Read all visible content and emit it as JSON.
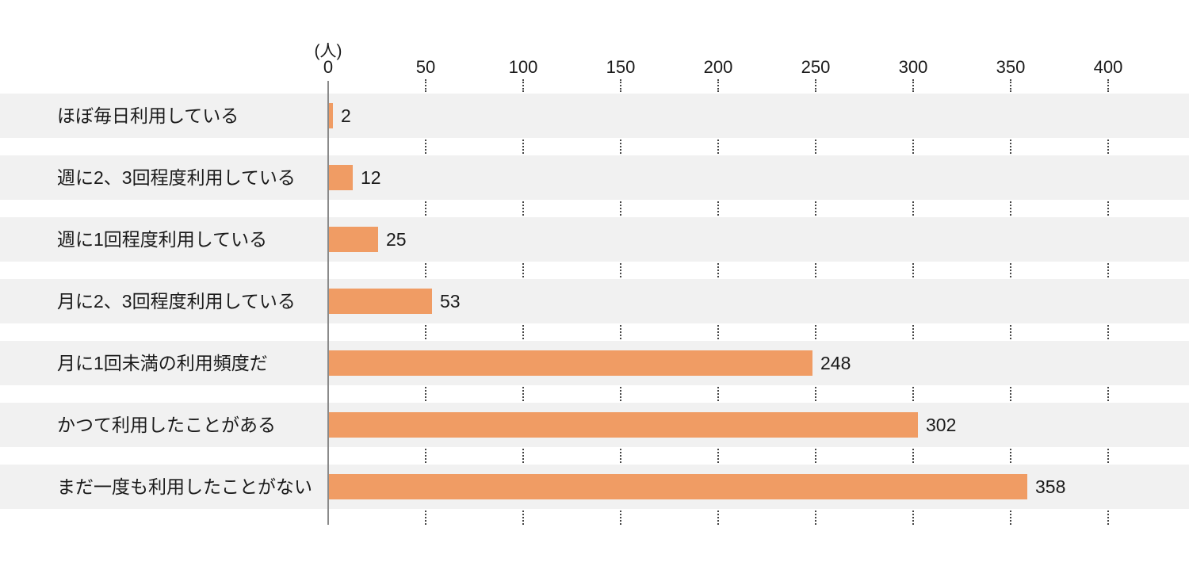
{
  "chart_data": {
    "type": "bar",
    "orientation": "horizontal",
    "title": "",
    "unit_label": "(人)",
    "categories": [
      "ほぼ毎日利用している",
      "週に2、3回程度利用している",
      "週に1回程度利用している",
      "月に2、3回程度利用している",
      "月に1回未満の利用頻度だ",
      "かつて利用したことがある",
      "まだ一度も利用したことがない"
    ],
    "values": [
      2,
      12,
      25,
      53,
      248,
      302,
      358
    ],
    "x_ticks": [
      0,
      50,
      100,
      150,
      200,
      250,
      300,
      350,
      400
    ],
    "xlim": [
      0,
      440
    ],
    "xlabel": "",
    "ylabel": "",
    "legend_position": "none",
    "grid": "dotted vertical tick segments between row bands",
    "colors": {
      "bar": "#f09c64",
      "row_band": "#f1f1f1",
      "axis_line": "#8a8a8a",
      "tick_dots": "#444444",
      "text": "#1a1a1a",
      "background": "#ffffff"
    }
  }
}
